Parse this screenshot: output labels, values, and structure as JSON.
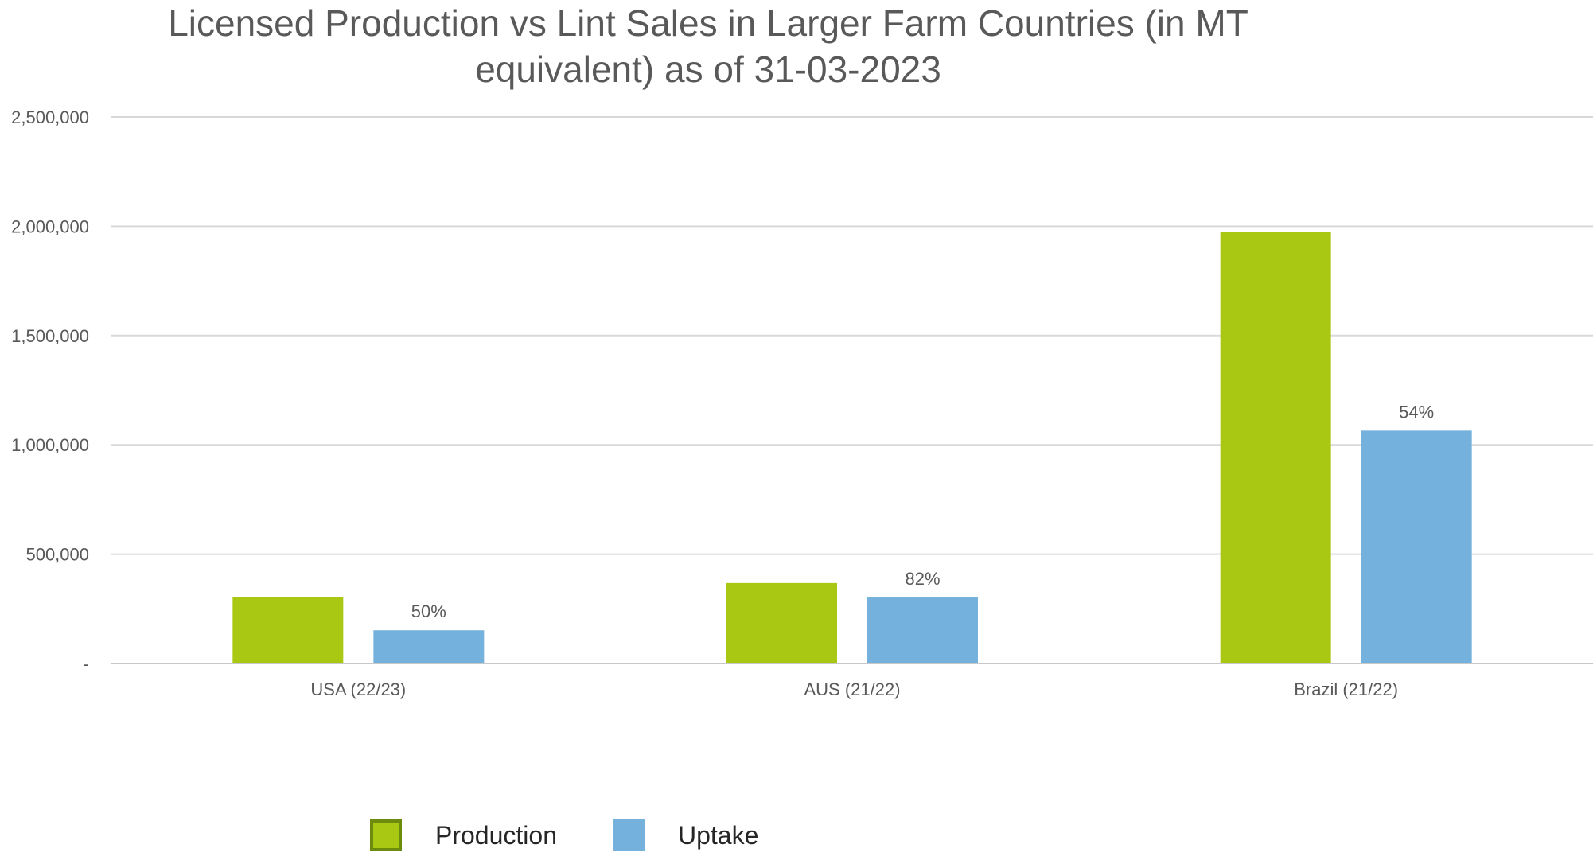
{
  "chart_data": {
    "type": "bar",
    "title": "Licensed Production vs Lint Sales in Larger Farm Countries (in MT equivalent) as of 31-03-2023",
    "title_lines": [
      "Licensed Production vs Lint Sales in Larger Farm Countries (in MT",
      "equivalent) as of 31-03-2023"
    ],
    "categories": [
      "USA (22/23)",
      "AUS (21/22)",
      "Brazil (21/22)"
    ],
    "series": [
      {
        "name": "Production",
        "color": "#a8c813",
        "values": [
          305000,
          368000,
          1975000
        ],
        "labels": [
          "",
          "",
          ""
        ]
      },
      {
        "name": "Uptake",
        "color": "#74b1dc",
        "values": [
          152000,
          302000,
          1065000
        ],
        "labels": [
          "50%",
          "82%",
          "54%"
        ]
      }
    ],
    "y_ticks": [
      0,
      500000,
      1000000,
      1500000,
      2000000,
      2500000
    ],
    "y_tick_labels": [
      "-",
      "500,000",
      "1,000,000",
      "1,500,000",
      "2,000,000",
      "2,500,000"
    ],
    "ylim": [
      0,
      2500000
    ],
    "grid": true,
    "legend_position": "bottom",
    "legend_swatch_border": "#6d8b0c",
    "xlabel": "",
    "ylabel": ""
  }
}
